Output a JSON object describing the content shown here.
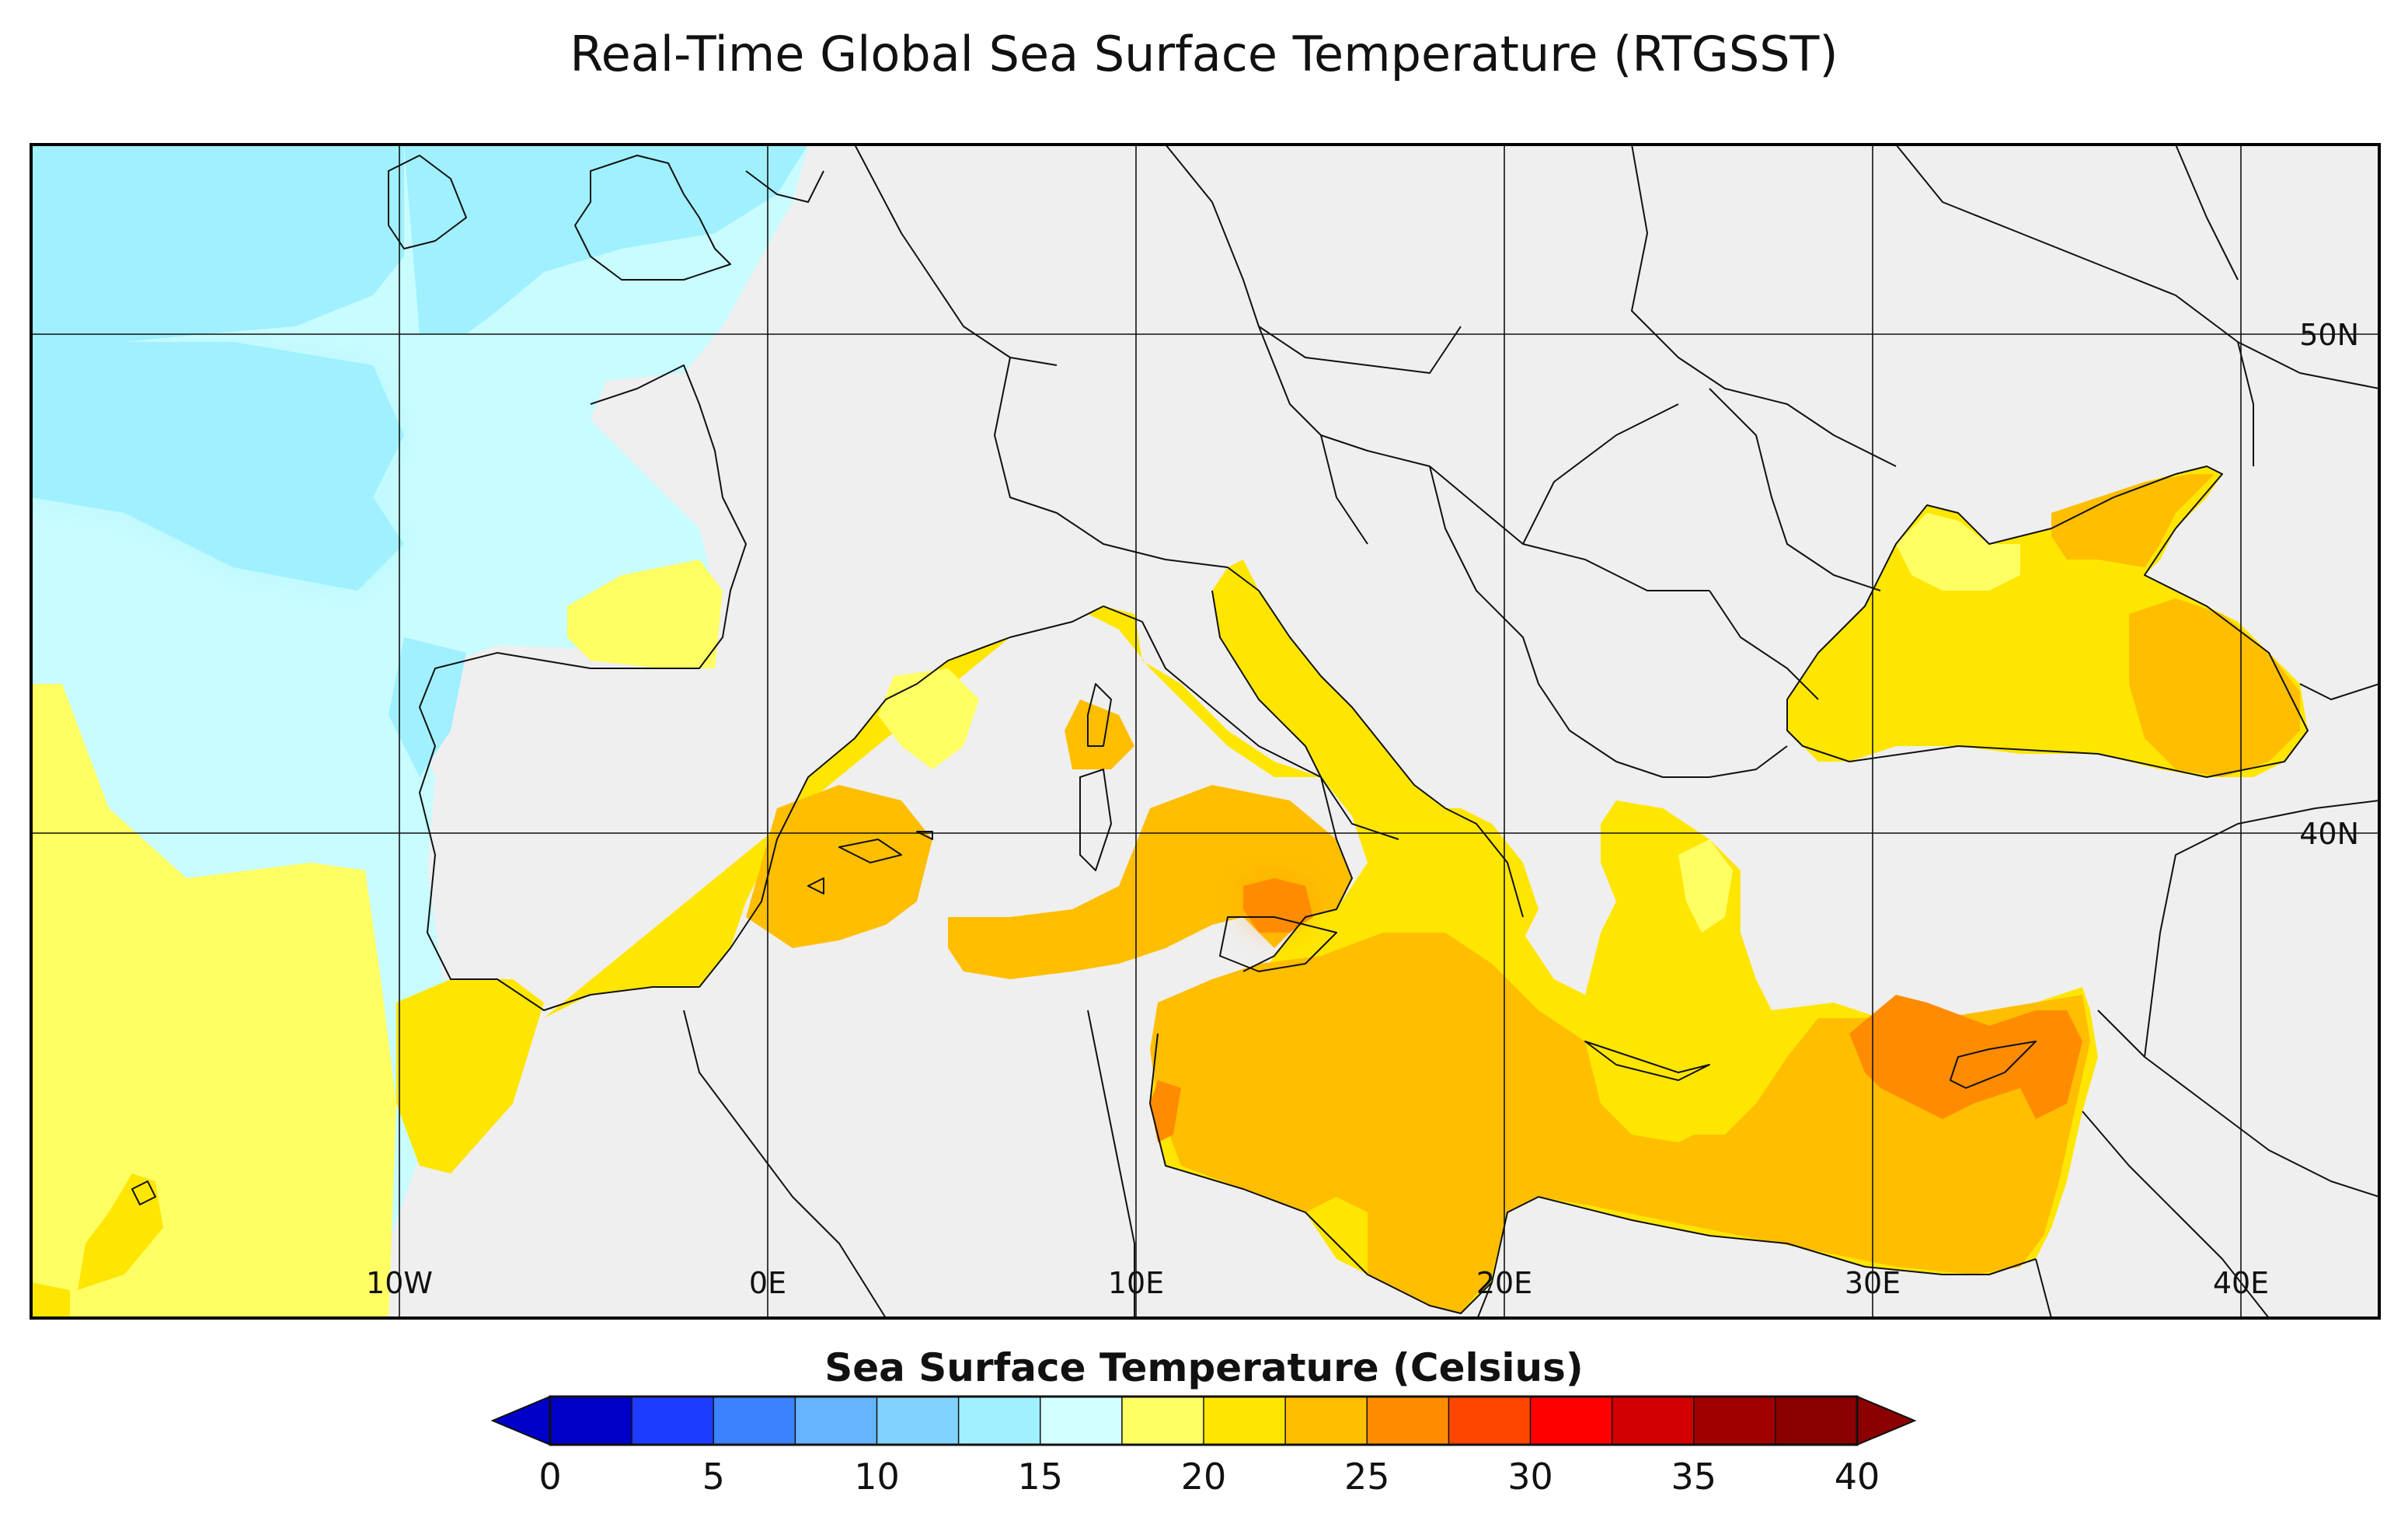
{
  "title": "Real-Time Global Sea Surface Temperature (RTGSST)",
  "map": {
    "longitude_labels": [
      "10W",
      "0E",
      "10E",
      "20E",
      "30E",
      "40E"
    ],
    "latitude_labels": [
      "50N",
      "40N"
    ],
    "colors": {
      "land": "#efefef",
      "border": "#111111",
      "gridline": "#111111",
      "frame": "#000000"
    }
  },
  "colorbar": {
    "title": "Sea Surface Temperature (Celsius)",
    "tick_labels": [
      "0",
      "5",
      "10",
      "15",
      "20",
      "25",
      "30",
      "35",
      "40"
    ],
    "min": 0,
    "max": 40,
    "step": 2.5,
    "under_color": "#0000c8",
    "over_color": "#8b0000",
    "colors": [
      "#0000c8",
      "#1e3cff",
      "#3c82ff",
      "#64b4ff",
      "#82d2ff",
      "#a0f0ff",
      "#d2ffff",
      "#ffff64",
      "#ffe600",
      "#ffbe00",
      "#ff8c00",
      "#ff4600",
      "#ff0000",
      "#d20000",
      "#a00000",
      "#8b0000"
    ]
  }
}
